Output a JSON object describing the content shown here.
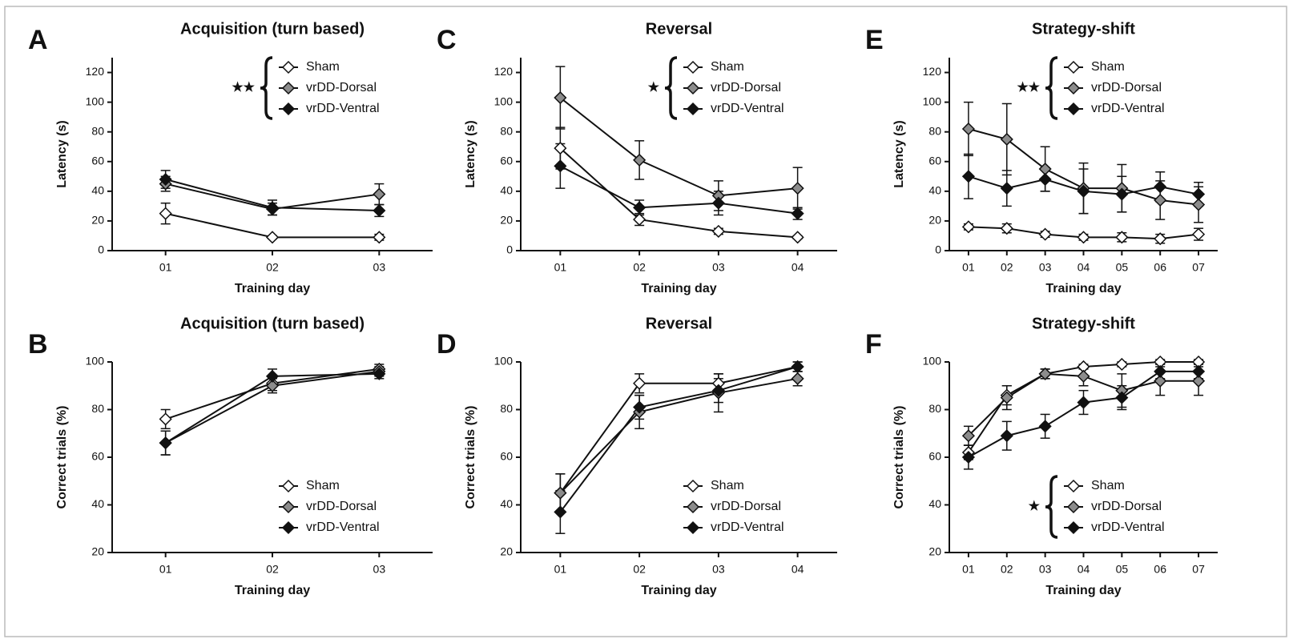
{
  "chart_data": [
    {
      "type": "line",
      "panel": "A",
      "title": "Acquisition (turn based)",
      "xlabel": "Training day",
      "ylabel": "Latency (s)",
      "categories": [
        "01",
        "02",
        "03"
      ],
      "ylim": [
        0,
        130
      ],
      "yticks": [
        0,
        20,
        40,
        60,
        80,
        100,
        120
      ],
      "legend": "upper right",
      "annotation": "★★",
      "series": [
        {
          "name": "Sham",
          "color": "#ffffff",
          "values": [
            25,
            9,
            9
          ],
          "errors": [
            7,
            1,
            2
          ]
        },
        {
          "name": "vrDD-Dorsal",
          "color": "#8c8c8c",
          "values": [
            45,
            28,
            38
          ],
          "errors": [
            5,
            4,
            7
          ]
        },
        {
          "name": "vrDD-Ventral",
          "color": "#111111",
          "values": [
            48,
            29,
            27
          ],
          "errors": [
            6,
            5,
            4
          ]
        }
      ]
    },
    {
      "type": "line",
      "panel": "C",
      "title": "Reversal",
      "xlabel": "Training day",
      "ylabel": "Latency (s)",
      "categories": [
        "01",
        "02",
        "03",
        "04"
      ],
      "ylim": [
        0,
        130
      ],
      "yticks": [
        0,
        20,
        40,
        60,
        80,
        100,
        120
      ],
      "legend": "upper right",
      "annotation": "★",
      "series": [
        {
          "name": "Sham",
          "color": "#ffffff",
          "values": [
            69,
            21,
            13,
            9
          ],
          "errors": [
            14,
            4,
            2,
            1
          ]
        },
        {
          "name": "vrDD-Dorsal",
          "color": "#8c8c8c",
          "values": [
            103,
            61,
            37,
            42
          ],
          "errors": [
            21,
            13,
            10,
            14
          ]
        },
        {
          "name": "vrDD-Ventral",
          "color": "#111111",
          "values": [
            57,
            29,
            32,
            25
          ],
          "errors": [
            15,
            5,
            8,
            4
          ]
        }
      ]
    },
    {
      "type": "line",
      "panel": "E",
      "title": "Strategy-shift",
      "xlabel": "Training day",
      "ylabel": "Latency (s)",
      "categories": [
        "01",
        "02",
        "03",
        "04",
        "05",
        "06",
        "07"
      ],
      "ylim": [
        0,
        130
      ],
      "yticks": [
        0,
        20,
        40,
        60,
        80,
        100,
        120
      ],
      "legend": "upper right",
      "annotation": "★★",
      "series": [
        {
          "name": "Sham",
          "color": "#ffffff",
          "values": [
            16,
            15,
            11,
            9,
            9,
            8,
            11
          ],
          "errors": [
            2,
            3,
            2,
            2,
            3,
            3,
            4
          ]
        },
        {
          "name": "vrDD-Dorsal",
          "color": "#8c8c8c",
          "values": [
            82,
            75,
            55,
            42,
            42,
            34,
            31
          ],
          "errors": [
            18,
            24,
            15,
            17,
            16,
            13,
            12
          ]
        },
        {
          "name": "vrDD-Ventral",
          "color": "#111111",
          "values": [
            50,
            42,
            48,
            40,
            38,
            43,
            38
          ],
          "errors": [
            15,
            12,
            8,
            15,
            12,
            10,
            8
          ]
        }
      ]
    },
    {
      "type": "line",
      "panel": "B",
      "title": "Acquisition (turn based)",
      "xlabel": "Training day",
      "ylabel": "Correct trials (%)",
      "categories": [
        "01",
        "02",
        "03"
      ],
      "ylim": [
        20,
        100
      ],
      "yticks": [
        20,
        40,
        60,
        80,
        100
      ],
      "legend": "lower right",
      "series": [
        {
          "name": "Sham",
          "color": "#ffffff",
          "values": [
            76,
            91,
            97
          ],
          "errors": [
            4,
            3,
            2
          ]
        },
        {
          "name": "vrDD-Dorsal",
          "color": "#8c8c8c",
          "values": [
            66,
            90,
            96
          ],
          "errors": [
            5,
            3,
            2
          ]
        },
        {
          "name": "vrDD-Ventral",
          "color": "#111111",
          "values": [
            66,
            94,
            95
          ],
          "errors": [
            5,
            3,
            2
          ]
        }
      ]
    },
    {
      "type": "line",
      "panel": "D",
      "title": "Reversal",
      "xlabel": "Training day",
      "ylabel": "Correct trials (%)",
      "categories": [
        "01",
        "02",
        "03",
        "04"
      ],
      "ylim": [
        20,
        100
      ],
      "yticks": [
        20,
        40,
        60,
        80,
        100
      ],
      "legend": "lower right",
      "series": [
        {
          "name": "Sham",
          "color": "#ffffff",
          "values": [
            45,
            91,
            91,
            98
          ],
          "errors": [
            8,
            4,
            4,
            2
          ]
        },
        {
          "name": "vrDD-Dorsal",
          "color": "#8c8c8c",
          "values": [
            45,
            79,
            87,
            93
          ],
          "errors": [
            8,
            7,
            8,
            3
          ]
        },
        {
          "name": "vrDD-Ventral",
          "color": "#111111",
          "values": [
            37,
            81,
            88,
            98
          ],
          "errors": [
            9,
            5,
            5,
            2
          ]
        }
      ]
    },
    {
      "type": "line",
      "panel": "F",
      "title": "Strategy-shift",
      "xlabel": "Training day",
      "ylabel": "Correct trials (%)",
      "categories": [
        "01",
        "02",
        "03",
        "04",
        "05",
        "06",
        "07"
      ],
      "ylim": [
        20,
        100
      ],
      "yticks": [
        20,
        40,
        60,
        80,
        100
      ],
      "legend": "lower right",
      "annotation": "★",
      "series": [
        {
          "name": "Sham",
          "color": "#ffffff",
          "values": [
            62,
            86,
            95,
            98,
            99,
            100,
            100
          ],
          "errors": [
            3,
            4,
            2,
            1,
            1,
            1,
            1
          ]
        },
        {
          "name": "vrDD-Dorsal",
          "color": "#8c8c8c",
          "values": [
            69,
            85,
            95,
            94,
            88,
            92,
            92
          ],
          "errors": [
            4,
            5,
            2,
            4,
            7,
            6,
            6
          ]
        },
        {
          "name": "vrDD-Ventral",
          "color": "#111111",
          "values": [
            60,
            69,
            73,
            83,
            85,
            96,
            96
          ],
          "errors": [
            5,
            6,
            5,
            5,
            5,
            3,
            3
          ]
        }
      ]
    }
  ]
}
